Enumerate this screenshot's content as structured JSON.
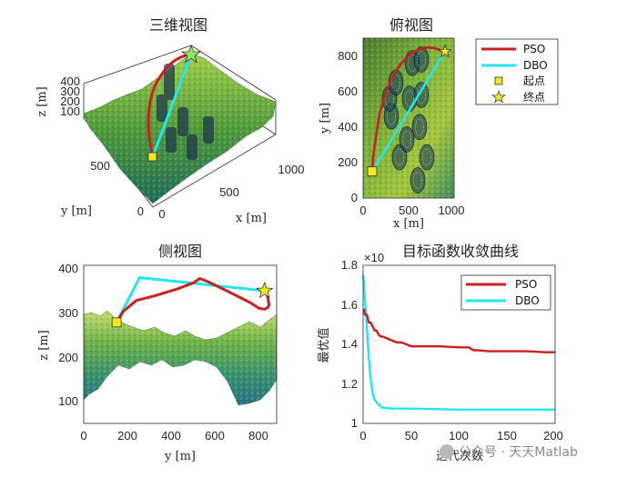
{
  "chart_data": [
    {
      "type": "line",
      "title": "三维视图",
      "xlabel": "x [m]",
      "ylabel": "y [m]",
      "zlabel": "z [m]",
      "xticks": [
        "0",
        "500",
        "1000"
      ],
      "yticks": [
        "0",
        "500"
      ],
      "zticks": [
        "100",
        "200",
        "300",
        "400"
      ],
      "series": [
        {
          "name": "PSO",
          "color": "#cc1f1f"
        },
        {
          "name": "DBO",
          "color": "#22e6f0"
        }
      ],
      "start_marker": "square",
      "end_marker": "star"
    },
    {
      "type": "line",
      "title": "俯视图",
      "xlabel": "x [m]",
      "ylabel": "y [m]",
      "xlim": [
        0,
        1000
      ],
      "ylim": [
        0,
        900
      ],
      "xticks": [
        "0",
        "500",
        "1000"
      ],
      "yticks": [
        "0",
        "200",
        "400",
        "600",
        "800"
      ],
      "series": [
        {
          "name": "PSO",
          "color": "#cc1f1f",
          "x": [
            100,
            110,
            140,
            180,
            240,
            320,
            420,
            520,
            600,
            660,
            720,
            800,
            860,
            900
          ],
          "y": [
            150,
            230,
            340,
            470,
            580,
            680,
            760,
            810,
            835,
            845,
            848,
            842,
            830,
            825
          ]
        },
        {
          "name": "DBO",
          "color": "#22e6f0",
          "x": [
            100,
            900
          ],
          "y": [
            150,
            825
          ]
        }
      ],
      "start": [
        100,
        150
      ],
      "end": [
        900,
        825
      ],
      "obstacles": [
        [
          310,
          460
        ],
        [
          290,
          560
        ],
        [
          360,
          650
        ],
        [
          510,
          560
        ],
        [
          540,
          760
        ],
        [
          640,
          580
        ],
        [
          640,
          780
        ],
        [
          600,
          100
        ],
        [
          400,
          230
        ],
        [
          480,
          330
        ],
        [
          700,
          230
        ],
        [
          620,
          400
        ]
      ]
    },
    {
      "type": "line",
      "title": "侧视图",
      "xlabel": "y [m]",
      "ylabel": "z [m]",
      "xlim": [
        0,
        880
      ],
      "ylim": [
        50,
        410
      ],
      "xticks": [
        "0",
        "200",
        "400",
        "600",
        "800"
      ],
      "yticks": [
        "100",
        "200",
        "300",
        "400"
      ],
      "series": [
        {
          "name": "PSO",
          "color": "#cc1f1f",
          "x": [
            150,
            180,
            240,
            320,
            420,
            500,
            530,
            570,
            640,
            700,
            760,
            800,
            825,
            840,
            845,
            838,
            825
          ],
          "y": [
            280,
            305,
            330,
            340,
            355,
            370,
            380,
            372,
            355,
            340,
            325,
            312,
            310,
            314,
            320,
            340,
            352
          ]
        },
        {
          "name": "DBO",
          "color": "#22e6f0",
          "x": [
            150,
            255,
            825
          ],
          "y": [
            280,
            382,
            352
          ]
        }
      ],
      "start": [
        150,
        280
      ],
      "end": [
        825,
        352
      ]
    },
    {
      "type": "line",
      "title": "目标函数收敛曲线",
      "xlabel": "迭代次数",
      "ylabel": "最优值",
      "exponent_label": "×10",
      "xlim": [
        0,
        200
      ],
      "ylim": [
        1.0,
        1.8
      ],
      "xticks": [
        "0",
        "50",
        "100",
        "150",
        "200"
      ],
      "yticks": [
        "1",
        "1.2",
        "1.4",
        "1.6",
        "1.8"
      ],
      "legend": "top-right",
      "series": [
        {
          "name": "PSO",
          "color": "#cc1f1f",
          "x": [
            0,
            1,
            2,
            4,
            6,
            8,
            10,
            12,
            14,
            16,
            18,
            20,
            25,
            30,
            35,
            40,
            45,
            50,
            60,
            80,
            100,
            110,
            115,
            120,
            130,
            150,
            170,
            190,
            200
          ],
          "y": [
            1.57,
            1.575,
            1.55,
            1.55,
            1.51,
            1.51,
            1.49,
            1.47,
            1.47,
            1.45,
            1.44,
            1.44,
            1.43,
            1.42,
            1.41,
            1.41,
            1.4,
            1.39,
            1.39,
            1.39,
            1.385,
            1.385,
            1.37,
            1.37,
            1.365,
            1.365,
            1.365,
            1.36,
            1.36
          ]
        },
        {
          "name": "DBO",
          "color": "#22e6f0",
          "x": [
            0,
            1,
            2,
            3,
            4,
            5,
            6,
            8,
            10,
            12,
            15,
            20,
            30,
            50,
            100,
            200
          ],
          "y": [
            1.75,
            1.7,
            1.62,
            1.55,
            1.48,
            1.4,
            1.33,
            1.22,
            1.15,
            1.12,
            1.1,
            1.08,
            1.075,
            1.075,
            1.07,
            1.07
          ]
        }
      ]
    }
  ],
  "legend_tr": {
    "pso": "PSO",
    "dbo": "DBO",
    "start": "起点",
    "end": "终点"
  },
  "watermark": "公众号 · 天天Matlab"
}
